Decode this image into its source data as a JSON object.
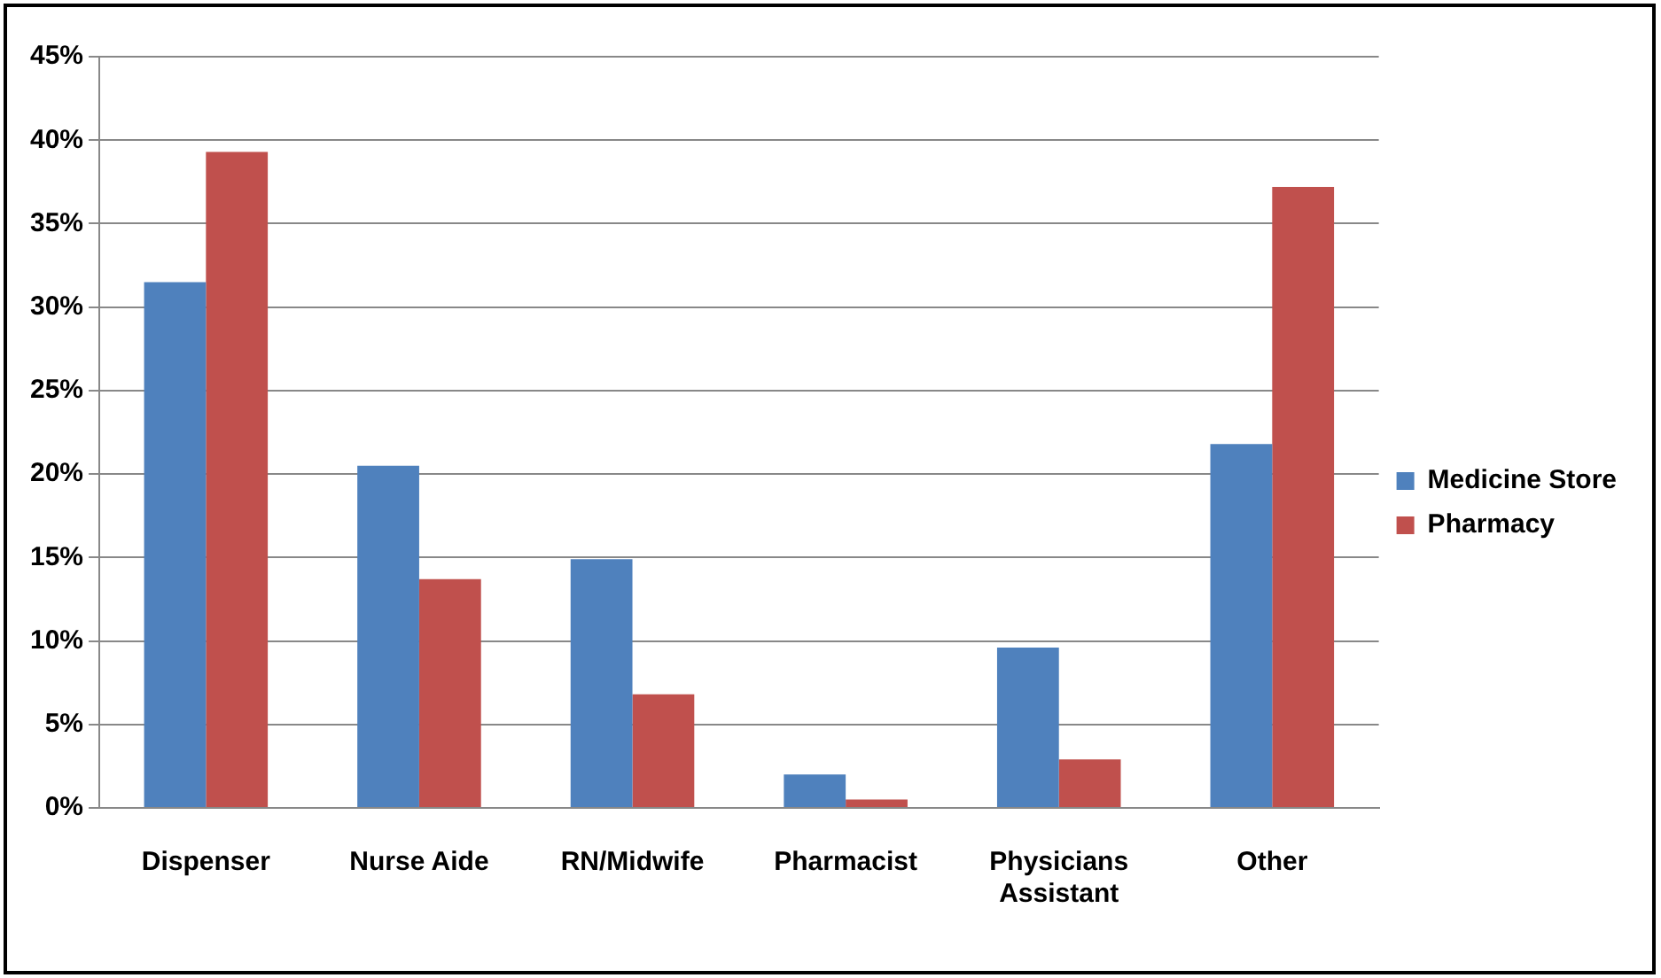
{
  "chart_data": {
    "type": "bar",
    "categories": [
      "Dispenser",
      "Nurse Aide",
      "RN/Midwife",
      "Pharmacist",
      "Physicians Assistant",
      "Other"
    ],
    "series": [
      {
        "name": "Medicine Store",
        "color": "#4f81bd",
        "values": [
          31.5,
          20.5,
          14.9,
          2.0,
          9.6,
          21.8
        ]
      },
      {
        "name": "Pharmacy",
        "color": "#c0504d",
        "values": [
          39.3,
          13.7,
          6.8,
          0.5,
          2.9,
          37.2
        ]
      }
    ],
    "ylim": [
      0,
      45
    ],
    "yticks": [
      {
        "value": 0,
        "label": "0%"
      },
      {
        "value": 5,
        "label": "5%"
      },
      {
        "value": 10,
        "label": "10%"
      },
      {
        "value": 15,
        "label": "15%"
      },
      {
        "value": 20,
        "label": "20%"
      },
      {
        "value": 25,
        "label": "25%"
      },
      {
        "value": 30,
        "label": "30%"
      },
      {
        "value": 35,
        "label": "35%"
      },
      {
        "value": 40,
        "label": "40%"
      },
      {
        "value": 45,
        "label": "45%"
      }
    ],
    "grid": "y",
    "legend": "right"
  }
}
